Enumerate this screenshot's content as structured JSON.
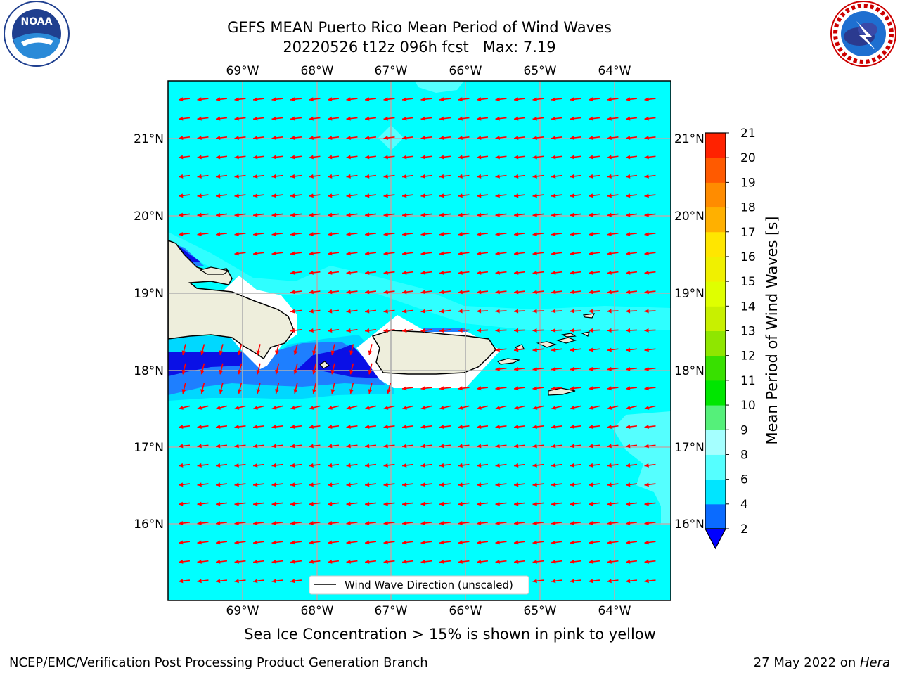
{
  "header": {
    "title_line1": "GEFS MEAN Puerto Rico Mean Period of Wind Waves",
    "title_line2": "20220526 t12z 096h fcst   Max: 7.19"
  },
  "logos": {
    "left_icon": "noaa-logo-icon",
    "left_text": "NOAA",
    "right_icon": "nws-logo-icon",
    "right_text": "NATIONAL WEATHER SERVICE"
  },
  "map": {
    "lon_ticks": [
      "69°W",
      "68°W",
      "67°W",
      "66°W",
      "65°W",
      "64°W"
    ],
    "lat_ticks": [
      "21°N",
      "20°N",
      "19°N",
      "18°N",
      "17°N",
      "16°N"
    ],
    "legend_label": "Wind Wave Direction (unscaled)",
    "colors": {
      "ocean_main": "#00ffff",
      "ocean_light": "#55ffff",
      "band_4_6": "#00e5ff",
      "band_2_4": "#1e7fff",
      "band_lt2": "#0a10e6",
      "land": "#eeeedc",
      "arrows": "#ff0000",
      "grid": "#b0b0b0"
    }
  },
  "colorbar": {
    "label": "Mean Period of Wind Waves [s]",
    "ticks": [
      "2",
      "4",
      "6",
      "8",
      "9",
      "10",
      "11",
      "12",
      "13",
      "14",
      "15",
      "16",
      "17",
      "18",
      "19",
      "20",
      "21"
    ],
    "colors": [
      "#0a6bff",
      "#00e5ff",
      "#55ffff",
      "#a5ffff",
      "#55f07a",
      "#00e600",
      "#38e000",
      "#8fe600",
      "#c8f000",
      "#dfff00",
      "#f0f000",
      "#ffe600",
      "#ffb000",
      "#ff8c00",
      "#ff5a00",
      "#ff2200"
    ],
    "underflow_color": "#0000ff"
  },
  "caption": "Sea Ice Concentration > 15% is shown in pink to yellow",
  "footer": {
    "left": "NCEP/EMC/Verification Post Processing Product Generation Branch",
    "right_prefix": "27 May 2022 on ",
    "right_machine": "Hera"
  }
}
